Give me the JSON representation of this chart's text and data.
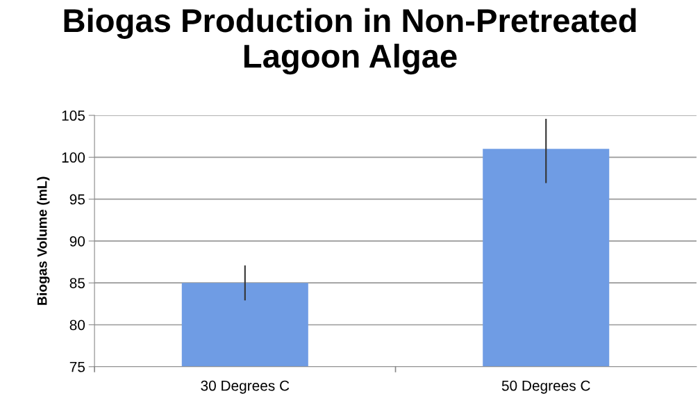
{
  "chart_data": {
    "type": "bar",
    "title": "Biogas Production in Non-Pretreated Lagoon Algae",
    "ylabel": "Biogas Volume (mL)",
    "categories": [
      "30 Degrees C",
      "50 Degrees C"
    ],
    "values": [
      85,
      101
    ],
    "errors": [
      [
        83,
        87
      ],
      [
        97,
        104.5
      ]
    ],
    "color": "#6f9ce4",
    "ylim": [
      75,
      105
    ],
    "yticks": [
      75,
      80,
      85,
      90,
      95,
      100,
      105
    ],
    "grid": "y"
  }
}
